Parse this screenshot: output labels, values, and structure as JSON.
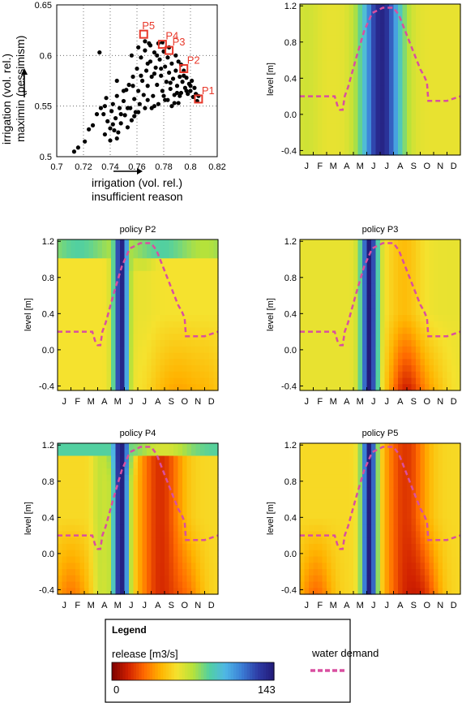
{
  "colors": {
    "frame": "#000000",
    "demand": "#d94fa0",
    "pareto_marker": "#e8392b",
    "colormap": [
      "#7b0000",
      "#d02000",
      "#ff6a00",
      "#ffb300",
      "#f5e22e",
      "#b6e23a",
      "#52d0a0",
      "#4fb7e6",
      "#3b7fd6",
      "#2e3ca6",
      "#221a78"
    ]
  },
  "legend": {
    "title": "Legend",
    "release_label": "release [m3/s]",
    "min_label": "0",
    "max_label": "143",
    "demand_label": "water demand"
  },
  "chart_data": [
    {
      "type": "scatter",
      "id": "pareto",
      "title": "",
      "xlabel_line1": "irrigation (vol. rel.)",
      "xlabel_line2": "insufficient reason",
      "ylabel_line1": "irrigation (vol. rel.)",
      "ylabel_line2": "maximin (pessimism)",
      "xlim": [
        0.7,
        0.82
      ],
      "ylim": [
        0.5,
        0.65
      ],
      "xticks": [
        "0.7",
        "0.72",
        "0.74",
        "0.76",
        "0.78",
        "0.8",
        "0.82"
      ],
      "yticks": [
        "0.5",
        "0.55",
        "0.6",
        "0.65"
      ],
      "grid": "dotted",
      "points": [
        [
          0.713,
          0.505
        ],
        [
          0.716,
          0.509
        ],
        [
          0.721,
          0.515
        ],
        [
          0.724,
          0.527
        ],
        [
          0.727,
          0.531
        ],
        [
          0.732,
          0.603
        ],
        [
          0.735,
          0.542
        ],
        [
          0.736,
          0.55
        ],
        [
          0.737,
          0.558
        ],
        [
          0.738,
          0.535
        ],
        [
          0.74,
          0.528
        ],
        [
          0.741,
          0.545
        ],
        [
          0.742,
          0.552
        ],
        [
          0.743,
          0.526
        ],
        [
          0.744,
          0.538
        ],
        [
          0.745,
          0.56
        ],
        [
          0.746,
          0.524
        ],
        [
          0.747,
          0.548
        ],
        [
          0.748,
          0.533
        ],
        [
          0.75,
          0.555
        ],
        [
          0.751,
          0.541
        ],
        [
          0.752,
          0.566
        ],
        [
          0.753,
          0.529
        ],
        [
          0.754,
          0.571
        ],
        [
          0.755,
          0.548
        ],
        [
          0.756,
          0.536
        ],
        [
          0.757,
          0.579
        ],
        [
          0.758,
          0.557
        ],
        [
          0.759,
          0.544
        ],
        [
          0.76,
          0.587
        ],
        [
          0.761,
          0.565
        ],
        [
          0.762,
          0.552
        ],
        [
          0.763,
          0.598
        ],
        [
          0.764,
          0.575
        ],
        [
          0.765,
          0.561
        ],
        [
          0.766,
          0.605
        ],
        [
          0.767,
          0.585
        ],
        [
          0.768,
          0.57
        ],
        [
          0.769,
          0.612
        ],
        [
          0.77,
          0.594
        ],
        [
          0.771,
          0.579
        ],
        [
          0.772,
          0.56
        ],
        [
          0.773,
          0.603
        ],
        [
          0.774,
          0.588
        ],
        [
          0.775,
          0.571
        ],
        [
          0.776,
          0.612
        ],
        [
          0.777,
          0.596
        ],
        [
          0.778,
          0.58
        ],
        [
          0.779,
          0.565
        ],
        [
          0.78,
          0.604
        ],
        [
          0.781,
          0.589
        ],
        [
          0.782,
          0.574
        ],
        [
          0.783,
          0.598
        ],
        [
          0.784,
          0.583
        ],
        [
          0.785,
          0.567
        ],
        [
          0.786,
          0.592
        ],
        [
          0.787,
          0.577
        ],
        [
          0.788,
          0.561
        ],
        [
          0.789,
          0.585
        ],
        [
          0.79,
          0.57
        ],
        [
          0.791,
          0.594
        ],
        [
          0.792,
          0.579
        ],
        [
          0.793,
          0.563
        ],
        [
          0.794,
          0.574
        ],
        [
          0.795,
          0.585
        ],
        [
          0.796,
          0.568
        ],
        [
          0.797,
          0.578
        ],
        [
          0.798,
          0.562
        ],
        [
          0.799,
          0.572
        ],
        [
          0.8,
          0.565
        ],
        [
          0.801,
          0.575
        ],
        [
          0.802,
          0.559
        ],
        [
          0.803,
          0.568
        ],
        [
          0.804,
          0.562
        ],
        [
          0.805,
          0.555
        ],
        [
          0.806,
          0.56
        ],
        [
          0.771,
          0.548
        ],
        [
          0.776,
          0.552
        ],
        [
          0.781,
          0.556
        ],
        [
          0.786,
          0.55
        ],
        [
          0.791,
          0.553
        ],
        [
          0.761,
          0.544
        ],
        [
          0.766,
          0.548
        ],
        [
          0.756,
          0.6
        ],
        [
          0.761,
          0.608
        ],
        [
          0.766,
          0.614
        ],
        [
          0.779,
          0.613
        ],
        [
          0.784,
          0.608
        ],
        [
          0.789,
          0.6
        ],
        [
          0.793,
          0.591
        ],
        [
          0.783,
          0.556
        ],
        [
          0.788,
          0.553
        ],
        [
          0.748,
          0.542
        ],
        [
          0.753,
          0.548
        ],
        [
          0.758,
          0.54
        ],
        [
          0.733,
          0.548
        ],
        [
          0.73,
          0.542
        ],
        [
          0.736,
          0.522
        ],
        [
          0.74,
          0.516
        ],
        [
          0.745,
          0.518
        ],
        [
          0.775,
          0.6
        ],
        [
          0.77,
          0.61
        ],
        [
          0.795,
          0.58
        ],
        [
          0.8,
          0.57
        ],
        [
          0.797,
          0.565
        ],
        [
          0.792,
          0.56
        ],
        [
          0.773,
          0.582
        ],
        [
          0.778,
          0.587
        ],
        [
          0.768,
          0.592
        ],
        [
          0.763,
          0.58
        ],
        [
          0.757,
          0.57
        ],
        [
          0.75,
          0.565
        ],
        [
          0.745,
          0.575
        ],
        [
          0.742,
          0.532
        ],
        [
          0.768,
          0.556
        ],
        [
          0.773,
          0.55
        ],
        [
          0.78,
          0.56
        ],
        [
          0.785,
          0.573
        ],
        [
          0.79,
          0.563
        ]
      ],
      "labeled_points": [
        {
          "name": "P1",
          "x": 0.806,
          "y": 0.557
        },
        {
          "name": "P2",
          "x": 0.795,
          "y": 0.587
        },
        {
          "name": "P3",
          "x": 0.784,
          "y": 0.605
        },
        {
          "name": "P4",
          "x": 0.779,
          "y": 0.611
        },
        {
          "name": "P5",
          "x": 0.765,
          "y": 0.621
        }
      ]
    },
    {
      "type": "heatmap",
      "id": "policy-p1",
      "title": "",
      "ylabel": "level [m]",
      "yticks": [
        "-0.4",
        "0.0",
        "0.4",
        "0.8",
        "1.2"
      ],
      "months": [
        "J",
        "F",
        "M",
        "A",
        "M",
        "J",
        "J",
        "A",
        "S",
        "O",
        "N",
        "D"
      ],
      "ylim": [
        -0.45,
        1.22
      ],
      "variant": "P1"
    },
    {
      "type": "heatmap",
      "id": "policy-p2",
      "title": "policy P2",
      "ylabel": "level [m]",
      "yticks": [
        "-0.4",
        "0.0",
        "0.4",
        "0.8",
        "1.2"
      ],
      "months": [
        "J",
        "F",
        "M",
        "A",
        "M",
        "J",
        "J",
        "A",
        "S",
        "O",
        "N",
        "D"
      ],
      "ylim": [
        -0.45,
        1.22
      ],
      "variant": "P2"
    },
    {
      "type": "heatmap",
      "id": "policy-p3",
      "title": "policy P3",
      "ylabel": "level [m]",
      "yticks": [
        "-0.4",
        "0.0",
        "0.4",
        "0.8",
        "1.2"
      ],
      "months": [
        "J",
        "F",
        "M",
        "A",
        "M",
        "J",
        "J",
        "A",
        "S",
        "O",
        "N",
        "D"
      ],
      "ylim": [
        -0.45,
        1.22
      ],
      "variant": "P3"
    },
    {
      "type": "heatmap",
      "id": "policy-p4",
      "title": "policy P4",
      "ylabel": "level [m]",
      "yticks": [
        "-0.4",
        "0.0",
        "0.4",
        "0.8",
        "1.2"
      ],
      "months": [
        "J",
        "F",
        "M",
        "A",
        "M",
        "J",
        "J",
        "A",
        "S",
        "O",
        "N",
        "D"
      ],
      "ylim": [
        -0.45,
        1.22
      ],
      "variant": "P4"
    },
    {
      "type": "heatmap",
      "id": "policy-p5",
      "title": "policy P5",
      "ylabel": "level [m]",
      "yticks": [
        "-0.4",
        "0.0",
        "0.4",
        "0.8",
        "1.2"
      ],
      "months": [
        "J",
        "F",
        "M",
        "A",
        "M",
        "J",
        "J",
        "A",
        "S",
        "O",
        "N",
        "D"
      ],
      "ylim": [
        -0.45,
        1.22
      ],
      "variant": "P5"
    }
  ],
  "water_demand_curve": {
    "x_month": [
      0,
      1.5,
      2.6,
      2.8,
      3.0,
      3.2,
      3.35,
      3.6,
      4.2,
      4.8,
      5.4,
      6.2,
      6.7,
      7.0,
      7.4,
      7.8,
      8.2,
      8.6,
      9.0,
      9.3,
      9.5,
      9.6,
      10.3,
      11.0,
      12.0
    ],
    "level": [
      0.2,
      0.2,
      0.2,
      0.1,
      0.05,
      0.05,
      0.2,
      0.3,
      0.62,
      0.92,
      1.12,
      1.18,
      1.18,
      1.18,
      1.1,
      0.95,
      0.8,
      0.65,
      0.5,
      0.42,
      0.35,
      0.15,
      0.15,
      0.15,
      0.2
    ]
  }
}
